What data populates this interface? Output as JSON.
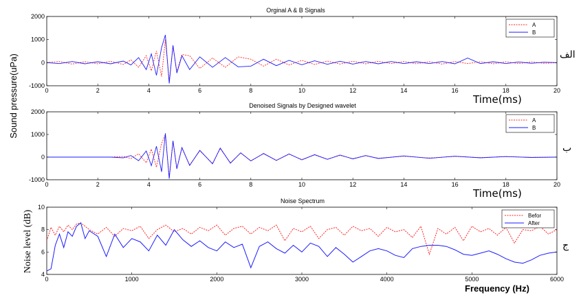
{
  "chart_data": [
    {
      "id": "p1",
      "type": "line",
      "title": "Orginal A & B Signals",
      "xlabel": "Time(ms)",
      "ylabel": "Sound pressure(uPa)",
      "xlim": [
        0,
        20
      ],
      "ylim": [
        -1000,
        2000
      ],
      "xticks": [
        "0",
        "2",
        "4",
        "6",
        "8",
        "10",
        "12",
        "14",
        "16",
        "18",
        "20"
      ],
      "yticks": [
        "-1000",
        "0",
        "1000",
        "2000"
      ],
      "legend_position": "top-right",
      "side_label": "الف",
      "series": [
        {
          "name": "A",
          "color": "#ff2020",
          "dash": true,
          "x": [
            0,
            0.5,
            1,
            1.5,
            2,
            2.5,
            3,
            3.3,
            3.6,
            3.9,
            4.1,
            4.3,
            4.5,
            4.65,
            4.8,
            4.95,
            5.1,
            5.3,
            5.6,
            6,
            6.5,
            7,
            7.5,
            8,
            8.5,
            9,
            9.5,
            10,
            10.5,
            11,
            11.5,
            12,
            12.5,
            13,
            13.5,
            14,
            14.5,
            15,
            15.5,
            16,
            16.5,
            17,
            17.5,
            18,
            18.5,
            19,
            19.5,
            20
          ],
          "y": [
            0,
            50,
            -60,
            40,
            -50,
            60,
            -80,
            120,
            -200,
            300,
            -350,
            500,
            -600,
            1000,
            -800,
            700,
            -400,
            350,
            300,
            -250,
            200,
            -200,
            250,
            150,
            -150,
            150,
            -100,
            100,
            -80,
            70,
            -60,
            60,
            -50,
            60,
            -40,
            50,
            -50,
            40,
            -60,
            50,
            -40,
            40,
            -50,
            40,
            -40,
            30,
            -30,
            0
          ]
        },
        {
          "name": "B",
          "color": "#1a1aff",
          "dash": false,
          "x": [
            0,
            0.5,
            1,
            1.5,
            2,
            2.5,
            3,
            3.3,
            3.6,
            3.9,
            4.1,
            4.3,
            4.5,
            4.65,
            4.8,
            4.95,
            5.1,
            5.3,
            5.6,
            6,
            6.5,
            7,
            7.5,
            8,
            8.5,
            9,
            9.5,
            10,
            10.5,
            11,
            11.5,
            12,
            12.5,
            13,
            13.5,
            14,
            14.5,
            15,
            15.5,
            16,
            16.5,
            17,
            17.5,
            18,
            18.5,
            19,
            19.5,
            20
          ],
          "y": [
            0,
            -40,
            50,
            -50,
            40,
            -50,
            70,
            -100,
            220,
            -300,
            380,
            -550,
            650,
            1200,
            -900,
            750,
            -450,
            300,
            -300,
            250,
            -200,
            220,
            -180,
            -150,
            150,
            -130,
            100,
            -90,
            80,
            -70,
            60,
            -60,
            50,
            -50,
            50,
            -40,
            40,
            -40,
            50,
            -50,
            200,
            -40,
            40,
            -40,
            30,
            -30,
            20,
            0
          ]
        }
      ]
    },
    {
      "id": "p2",
      "type": "line",
      "title": "Denoised Signals by Designed wavelet",
      "xlabel": "Time(ms)",
      "ylabel": "",
      "xlim": [
        0,
        20
      ],
      "ylim": [
        -1000,
        2000
      ],
      "xticks": [
        "0",
        "2",
        "4",
        "6",
        "8",
        "10",
        "12",
        "14",
        "16",
        "18",
        "20"
      ],
      "yticks": [
        "-1000",
        "0",
        "1000",
        "2000"
      ],
      "legend_position": "top-right",
      "side_label": "ب",
      "series": [
        {
          "name": "A",
          "color": "#ff2020",
          "dash": true,
          "x": [
            0,
            2.5,
            3,
            3.3,
            3.6,
            3.9,
            4.1,
            4.3,
            4.5,
            4.65,
            4.8,
            4.95,
            5.1,
            5.3,
            5.6,
            6,
            6.5,
            6.8,
            7.2,
            7.6,
            8,
            8.5,
            9,
            9.5,
            10,
            10.5,
            11,
            11.5,
            12,
            12.5,
            13,
            14,
            15,
            16,
            17,
            18,
            19,
            20
          ],
          "y": [
            0,
            0,
            30,
            -60,
            150,
            -250,
            350,
            -450,
            600,
            1000,
            -900,
            700,
            -500,
            400,
            -350,
            280,
            -280,
            380,
            -250,
            180,
            -160,
            150,
            -140,
            130,
            -110,
            100,
            -90,
            80,
            -70,
            60,
            -50,
            40,
            -40,
            30,
            -20,
            20,
            -10,
            0
          ]
        },
        {
          "name": "B",
          "color": "#1a1aff",
          "dash": false,
          "x": [
            0,
            2.5,
            3,
            3.3,
            3.6,
            3.9,
            4.1,
            4.3,
            4.5,
            4.65,
            4.8,
            4.95,
            5.1,
            5.3,
            5.6,
            6,
            6.5,
            6.8,
            7.2,
            7.6,
            8,
            8.5,
            9,
            9.5,
            10,
            10.5,
            11,
            11.5,
            12,
            12.5,
            13,
            14,
            15,
            16,
            17,
            18,
            19,
            20
          ],
          "y": [
            0,
            0,
            -30,
            70,
            -160,
            270,
            -380,
            480,
            -650,
            1050,
            -950,
            720,
            -520,
            420,
            -370,
            300,
            -300,
            400,
            -270,
            190,
            -170,
            160,
            -150,
            140,
            -120,
            110,
            -100,
            90,
            -80,
            70,
            -60,
            50,
            -50,
            40,
            -30,
            25,
            -15,
            0
          ]
        }
      ]
    },
    {
      "id": "p3",
      "type": "line",
      "title": "Noise Spectrum",
      "xlabel": "Frequency (Hz)",
      "ylabel": "Noise level (dB)",
      "xlim": [
        0,
        6000
      ],
      "ylim": [
        4,
        10
      ],
      "xticks": [
        "0",
        "1000",
        "2000",
        "3000",
        "4000",
        "5000",
        "6000"
      ],
      "yticks": [
        "4",
        "6",
        "8",
        "10"
      ],
      "legend_position": "top-right",
      "side_label": "ج",
      "series": [
        {
          "name": "Befor",
          "color": "#ff2020",
          "dash": true,
          "x": [
            0,
            50,
            100,
            150,
            200,
            250,
            300,
            350,
            400,
            450,
            500,
            600,
            700,
            800,
            900,
            1000,
            1100,
            1200,
            1300,
            1400,
            1500,
            1600,
            1700,
            1800,
            1900,
            2000,
            2100,
            2200,
            2300,
            2400,
            2500,
            2600,
            2700,
            2800,
            2900,
            3000,
            3100,
            3200,
            3300,
            3400,
            3500,
            3600,
            3700,
            3800,
            3900,
            4000,
            4100,
            4200,
            4300,
            4400,
            4500,
            4600,
            4700,
            4800,
            4900,
            5000,
            5100,
            5200,
            5300,
            5400,
            5500,
            5600,
            5700,
            5800,
            5900,
            6000
          ],
          "y": [
            7.0,
            8.2,
            7.5,
            8.3,
            7.8,
            8.4,
            8.0,
            8.5,
            8.6,
            8.3,
            8.0,
            7.6,
            8.2,
            7.4,
            8.1,
            7.9,
            8.3,
            7.2,
            8.0,
            8.4,
            7.8,
            8.1,
            7.6,
            8.2,
            7.9,
            8.4,
            7.5,
            8.1,
            8.3,
            7.6,
            8.2,
            7.9,
            8.4,
            7.0,
            8.1,
            7.8,
            8.3,
            7.2,
            8.0,
            8.2,
            7.5,
            8.3,
            7.9,
            8.1,
            7.4,
            8.2,
            7.8,
            8.0,
            7.3,
            8.3,
            5.8,
            8.1,
            7.6,
            8.2,
            7.0,
            8.3,
            7.8,
            8.1,
            7.5,
            8.2,
            6.8,
            8.0,
            7.9,
            8.3,
            7.6,
            8.0
          ]
        },
        {
          "name": "After",
          "color": "#1a1aff",
          "dash": false,
          "x": [
            0,
            50,
            100,
            150,
            200,
            250,
            300,
            350,
            400,
            450,
            500,
            600,
            700,
            800,
            900,
            1000,
            1100,
            1200,
            1300,
            1400,
            1500,
            1600,
            1700,
            1800,
            1900,
            2000,
            2100,
            2200,
            2300,
            2400,
            2500,
            2600,
            2700,
            2800,
            2900,
            3000,
            3100,
            3200,
            3300,
            3400,
            3500,
            3600,
            3700,
            3800,
            3900,
            4000,
            4100,
            4200,
            4300,
            4400,
            4500,
            4600,
            4700,
            4800,
            4900,
            5000,
            5100,
            5200,
            5300,
            5400,
            5500,
            5600,
            5700,
            5800,
            5900,
            6000
          ],
          "y": [
            4.3,
            4.5,
            6.6,
            7.6,
            6.4,
            7.8,
            7.4,
            8.3,
            8.6,
            7.2,
            7.9,
            7.4,
            5.6,
            7.6,
            6.4,
            7.2,
            6.9,
            6.1,
            7.5,
            6.6,
            8.0,
            7.1,
            6.5,
            7.0,
            6.4,
            6.1,
            6.9,
            6.4,
            6.7,
            4.6,
            6.5,
            6.9,
            6.3,
            5.9,
            6.6,
            6.0,
            6.8,
            6.5,
            5.6,
            6.4,
            5.8,
            5.1,
            5.6,
            6.1,
            6.3,
            6.1,
            5.7,
            5.5,
            6.3,
            6.5,
            6.6,
            6.6,
            6.5,
            6.2,
            5.8,
            5.7,
            5.9,
            6.1,
            5.8,
            5.4,
            5.1,
            5.0,
            5.3,
            5.7,
            5.9,
            6.0
          ]
        }
      ]
    }
  ]
}
